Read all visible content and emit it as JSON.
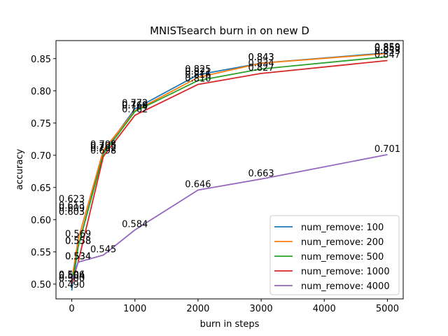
{
  "chart_data": {
    "type": "line",
    "title": "MNISTsearch burn in on new D",
    "xlabel": "burn in steps",
    "ylabel": "accuracy",
    "xlim": [
      -250,
      5250
    ],
    "ylim": [
      0.477,
      0.878
    ],
    "xticks": [
      0,
      1000,
      2000,
      3000,
      4000,
      5000
    ],
    "yticks": [
      0.5,
      0.55,
      0.6,
      0.65,
      0.7,
      0.75,
      0.8,
      0.85
    ],
    "ytick_labels": [
      "0.50",
      "0.55",
      "0.60",
      "0.65",
      "0.70",
      "0.75",
      "0.80",
      "0.85"
    ],
    "grid": false,
    "legend_position": "lower-right",
    "x": [
      0,
      100,
      500,
      1000,
      2000,
      3000,
      5000
    ],
    "series": [
      {
        "name": "num_remove: 100",
        "color": "#1f77b4",
        "values": [
          0.49,
          0.558,
          0.705,
          0.772,
          0.825,
          0.843,
          0.859
        ],
        "labels": [
          "0.490",
          "0.558",
          "0.705",
          "0.772",
          "0.825",
          "0.843",
          "0.859"
        ]
      },
      {
        "name": "num_remove: 200",
        "color": "#ff7f0e",
        "values": [
          0.506,
          0.569,
          0.708,
          0.769,
          0.821,
          0.843,
          0.858
        ],
        "labels": [
          "0.506",
          "0.569",
          "0.708",
          "0.769",
          "0.821",
          "0.843",
          "0.858"
        ]
      },
      {
        "name": "num_remove: 500",
        "color": "#2ca02c",
        "values": [
          0.5,
          0.558,
          0.702,
          0.768,
          0.816,
          0.834,
          0.853
        ],
        "labels": [
          "0.500",
          "0.558",
          "0.702",
          "0.768",
          "0.816",
          "0.834",
          "0.853"
        ]
      },
      {
        "name": "num_remove: 1000",
        "color": "#d62728",
        "values": [
          0.5,
          0.534,
          0.698,
          0.762,
          0.81,
          0.827,
          0.847
        ],
        "labels": [
          "0.500",
          "0.534",
          "0.698",
          "0.762",
          "0.810",
          "0.827",
          "0.847"
        ]
      },
      {
        "name": "num_remove: 4000",
        "color": "#9467bd",
        "values": [
          0.504,
          0.534,
          0.545,
          0.584,
          0.646,
          0.663,
          0.701
        ],
        "labels": [
          "0.504",
          "0.534",
          "0.545",
          "0.584",
          "0.646",
          "0.663",
          "0.701"
        ]
      }
    ],
    "extra_labels": [
      {
        "text": "0.623",
        "x": 0,
        "y": 0.623
      },
      {
        "text": "0.613",
        "x": 0,
        "y": 0.613
      },
      {
        "text": "0.609",
        "x": 0,
        "y": 0.609
      },
      {
        "text": "0.603",
        "x": 0,
        "y": 0.603
      }
    ]
  }
}
